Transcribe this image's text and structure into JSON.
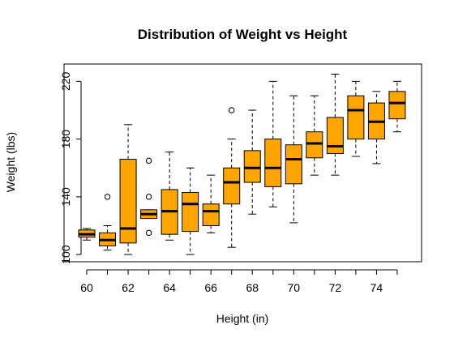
{
  "chart_data": {
    "type": "boxplot",
    "title": "Distribution of Weight vs Height",
    "xlabel": "Height (in)",
    "ylabel": "Weight (lbs)",
    "ylim": [
      95,
      232
    ],
    "y_ticks": [
      100,
      140,
      180,
      220
    ],
    "x_tick_labels": [
      "60",
      "62",
      "64",
      "66",
      "68",
      "70",
      "72",
      "74"
    ],
    "grid": false,
    "legend": "none",
    "colors": {
      "box_fill": "#FFA500",
      "stroke": "#000000",
      "background": "#FFFFFF"
    },
    "categories": [
      60,
      61,
      62,
      63,
      64,
      65,
      66,
      67,
      68,
      69,
      70,
      71,
      72,
      73,
      74,
      75
    ],
    "boxes": [
      {
        "height": 60,
        "min": 110,
        "q1": 112,
        "median": 114,
        "q3": 117,
        "max": 118,
        "outliers": []
      },
      {
        "height": 61,
        "min": 103,
        "q1": 106,
        "median": 110,
        "q3": 115,
        "max": 120,
        "outliers": [
          140
        ]
      },
      {
        "height": 62,
        "min": 100,
        "q1": 108,
        "median": 118,
        "q3": 166,
        "max": 190,
        "outliers": []
      },
      {
        "height": 63,
        "min": 125,
        "q1": 125,
        "median": 128,
        "q3": 131,
        "max": 131,
        "outliers": [
          165,
          140,
          115
        ]
      },
      {
        "height": 64,
        "min": 110,
        "q1": 114,
        "median": 130,
        "q3": 145,
        "max": 171,
        "outliers": []
      },
      {
        "height": 65,
        "min": 100,
        "q1": 116,
        "median": 135,
        "q3": 143,
        "max": 160,
        "outliers": []
      },
      {
        "height": 66,
        "min": 115,
        "q1": 120,
        "median": 130,
        "q3": 135,
        "max": 155,
        "outliers": []
      },
      {
        "height": 67,
        "min": 105,
        "q1": 135,
        "median": 150,
        "q3": 160,
        "max": 180,
        "outliers": [
          200
        ]
      },
      {
        "height": 68,
        "min": 128,
        "q1": 150,
        "median": 160,
        "q3": 172,
        "max": 200,
        "outliers": []
      },
      {
        "height": 69,
        "min": 133,
        "q1": 147,
        "median": 160,
        "q3": 180,
        "max": 220,
        "outliers": []
      },
      {
        "height": 70,
        "min": 122,
        "q1": 149,
        "median": 166,
        "q3": 176,
        "max": 210,
        "outliers": []
      },
      {
        "height": 71,
        "min": 155,
        "q1": 167,
        "median": 177,
        "q3": 185,
        "max": 210,
        "outliers": []
      },
      {
        "height": 72,
        "min": 155,
        "q1": 170,
        "median": 175,
        "q3": 195,
        "max": 225,
        "outliers": []
      },
      {
        "height": 73,
        "min": 168,
        "q1": 180,
        "median": 200,
        "q3": 210,
        "max": 220,
        "outliers": []
      },
      {
        "height": 74,
        "min": 163,
        "q1": 180,
        "median": 192,
        "q3": 205,
        "max": 213,
        "outliers": []
      },
      {
        "height": 75,
        "min": 185,
        "q1": 194,
        "median": 205,
        "q3": 213,
        "max": 220,
        "outliers": []
      }
    ]
  }
}
